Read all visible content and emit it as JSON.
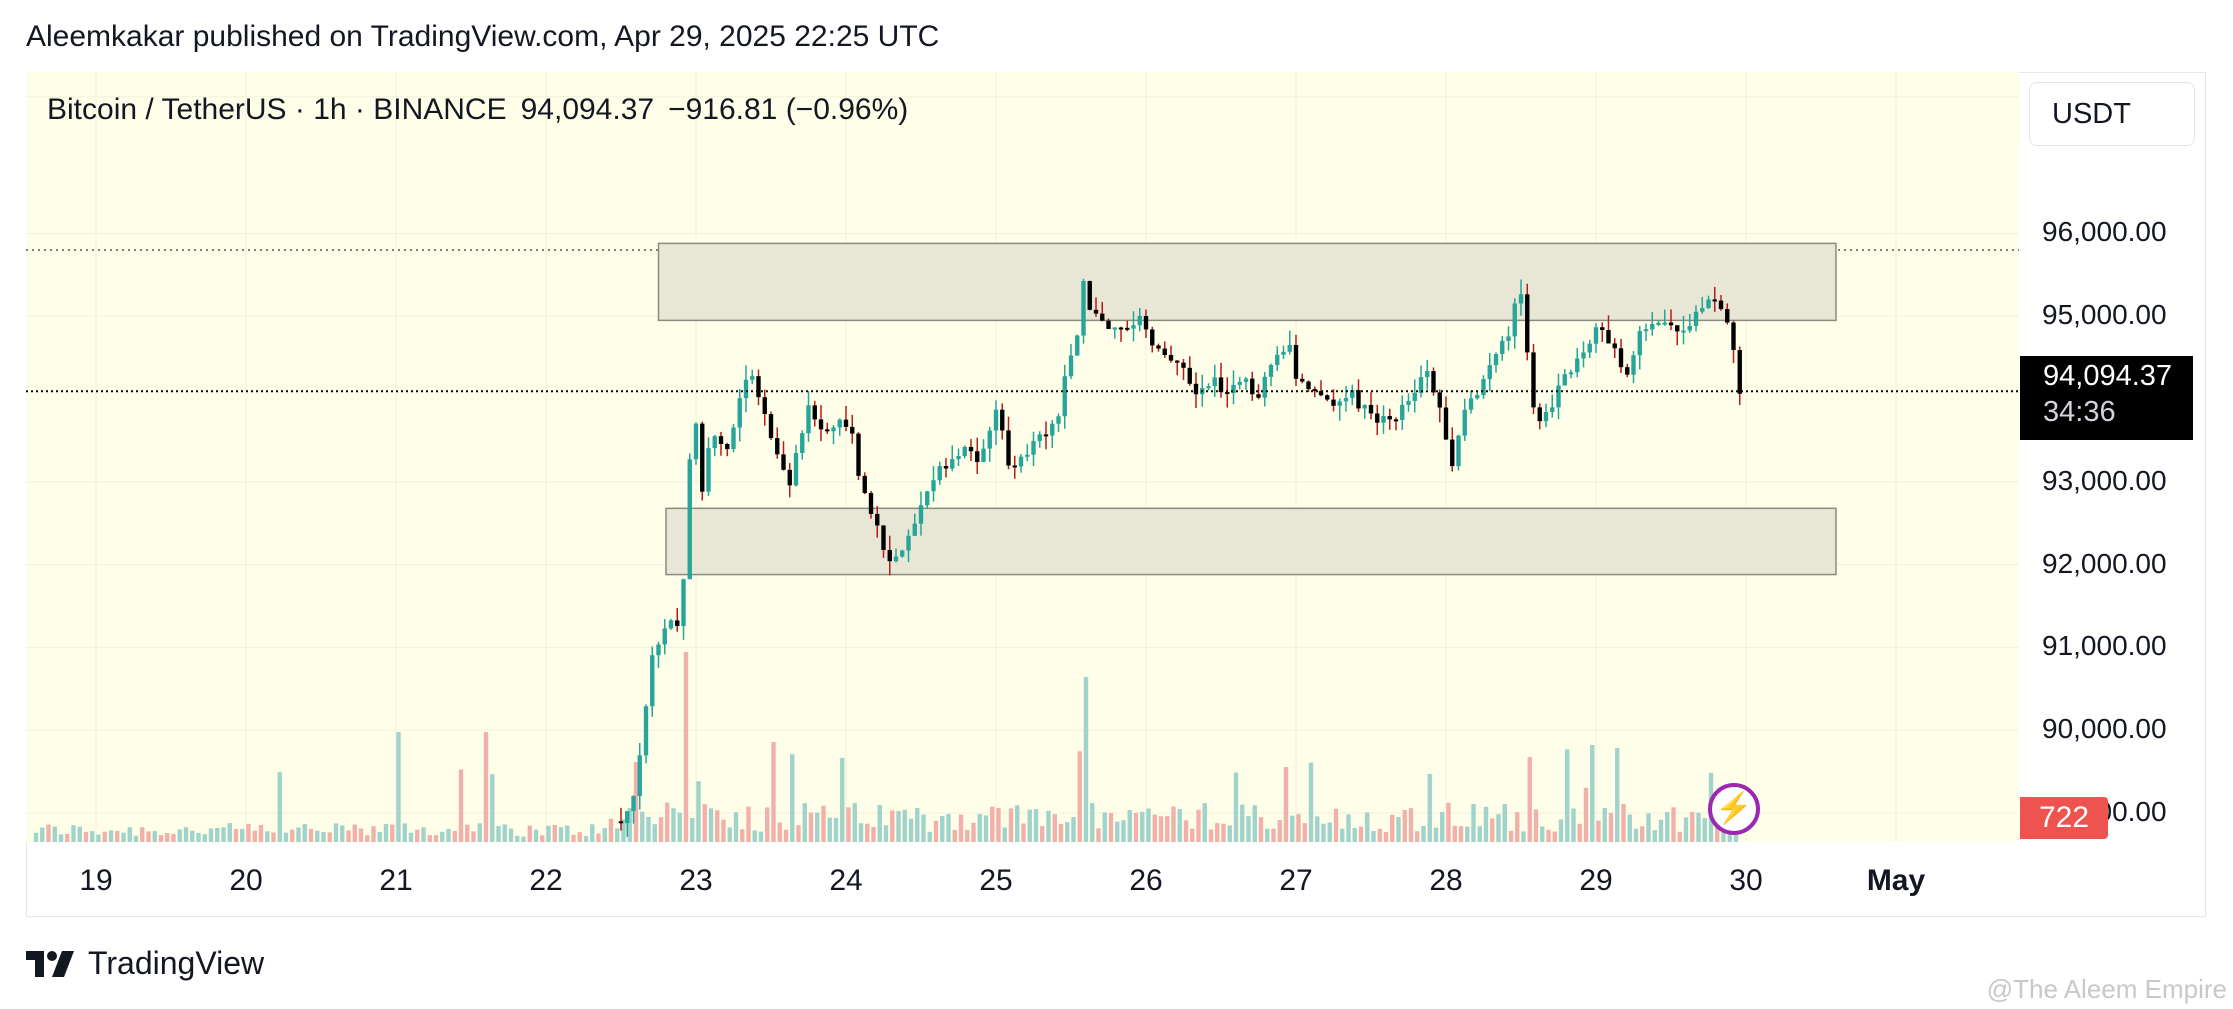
{
  "header": {
    "published": "Aleemkakar published on TradingView.com, Apr 29, 2025 22:25 UTC"
  },
  "legend": {
    "symbol": "Bitcoin / TetherUS · 1h · BINANCE",
    "price": "94,094.37",
    "change": "−916.81 (−0.96%)"
  },
  "currency": "USDT",
  "last_price": {
    "price": "94,094.37",
    "countdown": "34:36"
  },
  "volume_label": "722",
  "brand": "TradingView",
  "watermark": "@The Aleem Empire",
  "icons": {
    "alert": "lightning-bolt-icon",
    "logo": "tradingview-logo-icon"
  },
  "colors": {
    "up": "#26a69a",
    "down": "#000000",
    "vol_up": "#9fd3cb",
    "vol_down": "#f2b0aa",
    "zone_fill": "#e8e6d4",
    "zone_stroke": "#8a8a7e",
    "bg": "#fefee9",
    "accent": "#9c27b0"
  },
  "chart_data": {
    "type": "candlestick",
    "title": "Bitcoin / TetherUS · 1h · BINANCE",
    "y_ticks": [
      "96,000.00",
      "95,000.00",
      "93,000.00",
      "92,000.00",
      "91,000.00",
      "90,000.00",
      "89,000.00"
    ],
    "y_tick_values": [
      96000,
      95000,
      93000,
      92000,
      91000,
      90000,
      89000
    ],
    "x_ticks": [
      {
        "label": "19",
        "day": 19
      },
      {
        "label": "20",
        "day": 20
      },
      {
        "label": "21",
        "day": 21
      },
      {
        "label": "22",
        "day": 22
      },
      {
        "label": "23",
        "day": 23
      },
      {
        "label": "24",
        "day": 24
      },
      {
        "label": "25",
        "day": 25
      },
      {
        "label": "26",
        "day": 26
      },
      {
        "label": "27",
        "day": 27
      },
      {
        "label": "28",
        "day": 28
      },
      {
        "label": "29",
        "day": 29
      },
      {
        "label": "30",
        "day": 30
      },
      {
        "label": "May",
        "day": 31,
        "bold": true
      }
    ],
    "ylim": [
      88650,
      97950
    ],
    "grid": true,
    "last_price_line": 94094.37,
    "resistance_line": 95800,
    "zones": [
      {
        "name": "resistance-zone",
        "day_start": 22.75,
        "day_end": 30.6,
        "price_low": 94950,
        "price_high": 95880
      },
      {
        "name": "support-zone",
        "day_start": 22.8,
        "day_end": 30.6,
        "price_low": 91880,
        "price_high": 92680
      }
    ],
    "price_path": [
      [
        22.5,
        88900
      ],
      [
        22.6,
        89300
      ],
      [
        22.7,
        90800
      ],
      [
        22.78,
        91200
      ],
      [
        22.86,
        91450
      ],
      [
        22.9,
        91050
      ],
      [
        22.95,
        93200
      ],
      [
        23.0,
        93700
      ],
      [
        23.05,
        92800
      ],
      [
        23.1,
        93600
      ],
      [
        23.2,
        93300
      ],
      [
        23.3,
        94100
      ],
      [
        23.35,
        94350
      ],
      [
        23.45,
        93800
      ],
      [
        23.55,
        93300
      ],
      [
        23.62,
        92900
      ],
      [
        23.68,
        93400
      ],
      [
        23.75,
        93900
      ],
      [
        23.85,
        93600
      ],
      [
        23.95,
        93700
      ],
      [
        24.05,
        93500
      ],
      [
        24.1,
        92900
      ],
      [
        24.18,
        92550
      ],
      [
        24.25,
        92200
      ],
      [
        24.32,
        92000
      ],
      [
        24.4,
        92350
      ],
      [
        24.5,
        92700
      ],
      [
        24.6,
        93100
      ],
      [
        24.7,
        93300
      ],
      [
        24.8,
        93400
      ],
      [
        24.88,
        93300
      ],
      [
        24.95,
        93550
      ],
      [
        25.0,
        93950
      ],
      [
        25.05,
        93600
      ],
      [
        25.1,
        93100
      ],
      [
        25.2,
        93300
      ],
      [
        25.3,
        93600
      ],
      [
        25.4,
        93700
      ],
      [
        25.48,
        94400
      ],
      [
        25.55,
        94900
      ],
      [
        25.58,
        95400
      ],
      [
        25.63,
        95100
      ],
      [
        25.7,
        94900
      ],
      [
        25.75,
        94800
      ],
      [
        25.85,
        94900
      ],
      [
        25.95,
        95000
      ],
      [
        26.05,
        94700
      ],
      [
        26.15,
        94500
      ],
      [
        26.25,
        94300
      ],
      [
        26.35,
        94100
      ],
      [
        26.45,
        94200
      ],
      [
        26.55,
        94100
      ],
      [
        26.65,
        94200
      ],
      [
        26.75,
        94050
      ],
      [
        26.85,
        94500
      ],
      [
        26.95,
        94700
      ],
      [
        27.0,
        94300
      ],
      [
        27.05,
        94100
      ],
      [
        27.15,
        94000
      ],
      [
        27.25,
        93900
      ],
      [
        27.35,
        94100
      ],
      [
        27.45,
        93900
      ],
      [
        27.55,
        93700
      ],
      [
        27.65,
        93800
      ],
      [
        27.75,
        93950
      ],
      [
        27.82,
        94200
      ],
      [
        27.88,
        94300
      ],
      [
        27.95,
        93900
      ],
      [
        28.0,
        93500
      ],
      [
        28.05,
        93100
      ],
      [
        28.1,
        93700
      ],
      [
        28.2,
        94100
      ],
      [
        28.3,
        94400
      ],
      [
        28.4,
        94700
      ],
      [
        28.48,
        95300
      ],
      [
        28.52,
        95100
      ],
      [
        28.56,
        94050
      ],
      [
        28.62,
        93700
      ],
      [
        28.7,
        93900
      ],
      [
        28.8,
        94300
      ],
      [
        28.9,
        94600
      ],
      [
        28.98,
        94700
      ],
      [
        29.02,
        94900
      ],
      [
        29.08,
        94700
      ],
      [
        29.15,
        94500
      ],
      [
        29.22,
        94300
      ],
      [
        29.3,
        94800
      ],
      [
        29.4,
        95000
      ],
      [
        29.5,
        94900
      ],
      [
        29.6,
        94850
      ],
      [
        29.7,
        95100
      ],
      [
        29.76,
        95300
      ],
      [
        29.82,
        95200
      ],
      [
        29.86,
        94900
      ],
      [
        29.9,
        94800
      ],
      [
        29.95,
        94094
      ]
    ],
    "volume": {
      "last_bar_value": 722
    }
  }
}
